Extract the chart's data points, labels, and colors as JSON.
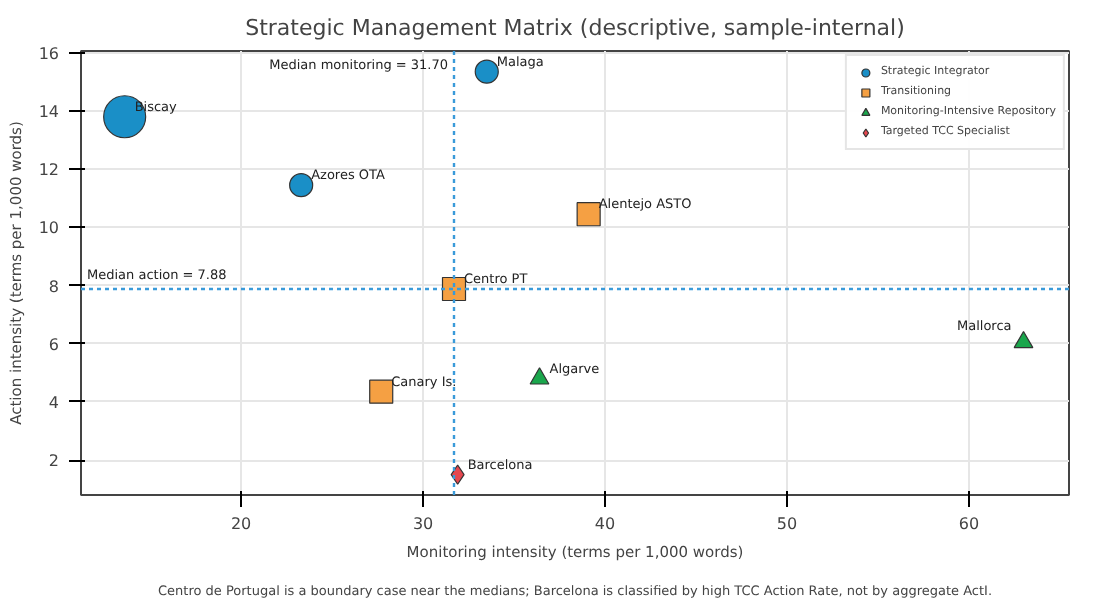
{
  "chart_data": {
    "type": "bubble",
    "title": "Strategic Management Matrix (descriptive, sample-internal)",
    "xlabel": "Monitoring intensity (terms per 1,000 words)",
    "ylabel": "Action intensity (terms per 1,000 words)",
    "xlim": [
      11.2,
      65.5
    ],
    "ylim": [
      0.8,
      16.06
    ],
    "xticks": [
      20,
      30,
      40,
      50,
      60
    ],
    "yticks": [
      2,
      4,
      6,
      8,
      10,
      12,
      14,
      16
    ],
    "grid": true,
    "legend": "top right",
    "series": [
      {
        "name": "Strategic Integrator",
        "color": "#1a8fc7",
        "marker": "circle",
        "x": [
          13.6,
          23.3,
          33.5
        ],
        "values": [
          13.8,
          11.45,
          15.35
        ],
        "sizes": [
          1,
          0.3,
          0.3
        ]
      },
      {
        "name": "Transitioning",
        "color": "#f5a043",
        "marker": "square",
        "x": [
          31.7,
          39.1,
          27.7
        ],
        "values": [
          7.88,
          10.45,
          4.35
        ],
        "sizes": [
          0.3,
          0.3,
          0.3
        ]
      },
      {
        "name": "Monitoring-Intensive Repository",
        "color": "#1aa64c",
        "marker": "triangle",
        "x": [
          36.4,
          63.0
        ],
        "values": [
          4.8,
          6.05
        ],
        "sizes": [
          0.11,
          0.11
        ]
      },
      {
        "name": "Targeted TCC Specialist",
        "color": "#e5474f",
        "marker": "diamond",
        "x": [
          31.9
        ],
        "values": [
          1.5
        ],
        "sizes": [
          0.09
        ]
      }
    ],
    "ref_lines": [
      {
        "axis": "x",
        "value": 31.7,
        "label": "Median monitoring = 31.70",
        "color": "#3a9ad9",
        "line_style": "dotted"
      },
      {
        "axis": "y",
        "value": 7.88,
        "label": "Median action = 7.88",
        "color": "#3a9ad9",
        "line_style": "dotted"
      }
    ],
    "annotations": [
      {
        "text": "Biscay",
        "x": 13.6,
        "y": 13.8
      },
      {
        "text": "Azores OTA",
        "x": 23.3,
        "y": 11.45
      },
      {
        "text": "Malaga",
        "x": 33.5,
        "y": 15.35
      },
      {
        "text": "Centro PT",
        "x": 31.7,
        "y": 7.88
      },
      {
        "text": "Alentejo ASTO",
        "x": 39.1,
        "y": 10.45
      },
      {
        "text": "Canary Is.",
        "x": 27.7,
        "y": 4.35
      },
      {
        "text": "Algarve",
        "x": 36.4,
        "y": 4.8
      },
      {
        "text": "Mallorca",
        "x": 63.0,
        "y": 6.05
      },
      {
        "text": "Barcelona",
        "x": 31.9,
        "y": 1.5
      },
      "Centro de Portugal is a boundary case near the medians; Barcelona is classified by high TCC Action Rate, not by aggregate ActI."
    ]
  }
}
